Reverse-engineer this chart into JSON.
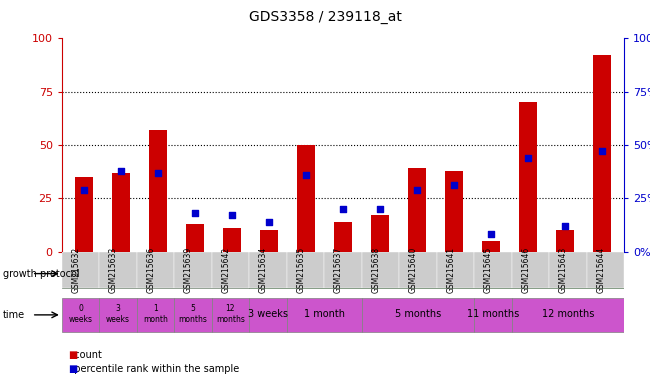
{
  "title": "GDS3358 / 239118_at",
  "samples": [
    "GSM215632",
    "GSM215633",
    "GSM215636",
    "GSM215639",
    "GSM215642",
    "GSM215634",
    "GSM215635",
    "GSM215637",
    "GSM215638",
    "GSM215640",
    "GSM215641",
    "GSM215645",
    "GSM215646",
    "GSM215643",
    "GSM215644"
  ],
  "count_values": [
    35,
    37,
    57,
    13,
    11,
    10,
    50,
    14,
    17,
    39,
    38,
    5,
    70,
    10,
    92
  ],
  "percentile_values": [
    29,
    38,
    37,
    18,
    17,
    14,
    36,
    20,
    20,
    29,
    31,
    8,
    44,
    12,
    47
  ],
  "bar_color": "#cc0000",
  "square_color": "#0000cc",
  "ylim": [
    0,
    100
  ],
  "yticks": [
    0,
    25,
    50,
    75,
    100
  ],
  "grid_lines": [
    25,
    50,
    75
  ],
  "control_color": "#90ee90",
  "androgen_color": "#33cc33",
  "time_color": "#cc55cc",
  "tick_label_color": "#cc0000",
  "right_tick_color": "#0000cc",
  "bar_width": 0.5,
  "square_size": 5,
  "label_bg_color": "#cccccc"
}
